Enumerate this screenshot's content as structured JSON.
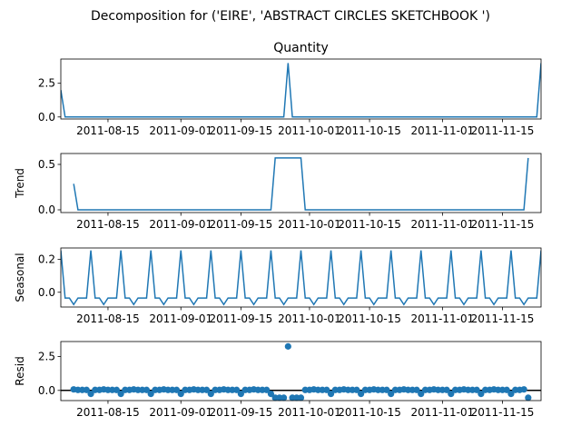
{
  "suptitle": "Decomposition for ('EIRE', 'ABSTRACT CIRCLES SKETCHBOOK ')",
  "colors": {
    "line": "#1f77b4",
    "axis": "#000000",
    "zero_line": "#000000"
  },
  "chart_data": [
    {
      "type": "line",
      "panel": "observed",
      "title": "Quantity",
      "ylabel": "",
      "ylim": [
        -0.15,
        4.3
      ],
      "yticks": [
        0.0,
        2.5
      ],
      "ytick_labels": [
        "0.0",
        "2.5"
      ],
      "x_start": "2011-08-04",
      "x_step_days": 1,
      "xlim_days": [
        0,
        112
      ],
      "x_tick_labels": [
        "2011-08-15",
        "2011-09-01",
        "2011-09-15",
        "2011-10-01",
        "2011-10-15",
        "2011-11-01",
        "2011-11-15"
      ],
      "x_tick_days": [
        11,
        28,
        42,
        58,
        72,
        89,
        103
      ],
      "spikes": [
        {
          "day": 0,
          "value": 2.0
        },
        {
          "day": 53,
          "value": 4.0
        },
        {
          "day": 112,
          "value": 4.0
        }
      ],
      "baseline": 0.0
    },
    {
      "type": "line",
      "panel": "trend",
      "title": "",
      "ylabel": "Trend",
      "ylim": [
        -0.03,
        0.62
      ],
      "yticks": [
        0.0,
        0.5
      ],
      "ytick_labels": [
        "0.0",
        "0.5"
      ],
      "x_tick_labels": [
        "2011-08-15",
        "2011-09-01",
        "2011-09-15",
        "2011-10-01",
        "2011-10-15",
        "2011-11-01",
        "2011-11-15"
      ],
      "x_tick_days": [
        11,
        28,
        42,
        58,
        72,
        89,
        103
      ],
      "points": [
        [
          3,
          0.286
        ],
        [
          4,
          0.0
        ],
        [
          49,
          0.0
        ],
        [
          50,
          0.571
        ],
        [
          56,
          0.571
        ],
        [
          57,
          0.0
        ],
        [
          108,
          0.0
        ],
        [
          109,
          0.571
        ]
      ]
    },
    {
      "type": "line",
      "panel": "seasonal",
      "title": "",
      "ylabel": "Seasonal",
      "ylim": [
        -0.09,
        0.27
      ],
      "yticks": [
        0.0,
        0.2
      ],
      "ytick_labels": [
        "0.0",
        "0.2"
      ],
      "x_tick_labels": [
        "2011-08-15",
        "2011-09-01",
        "2011-09-15",
        "2011-10-01",
        "2011-10-15",
        "2011-11-01",
        "2011-11-15"
      ],
      "x_tick_days": [
        11,
        28,
        42,
        58,
        72,
        89,
        103
      ],
      "period": 7,
      "pattern": [
        0.255,
        -0.035,
        -0.035,
        -0.075,
        -0.035,
        -0.035,
        -0.035
      ]
    },
    {
      "type": "scatter",
      "panel": "resid",
      "title": "",
      "ylabel": "Resid",
      "ylim": [
        -0.75,
        3.6
      ],
      "yticks": [
        0.0,
        2.5
      ],
      "ytick_labels": [
        "0.0",
        "2.5"
      ],
      "x_tick_labels": [
        "2011-08-15",
        "2011-09-01",
        "2011-09-15",
        "2011-10-01",
        "2011-10-15",
        "2011-11-01",
        "2011-11-15"
      ],
      "x_tick_days": [
        11,
        28,
        42,
        58,
        72,
        89,
        103
      ],
      "zero_line": true,
      "resid_range_days": [
        3,
        109
      ],
      "pattern": [
        -0.255,
        0.035,
        0.035,
        0.075,
        0.035,
        0.035,
        0.035
      ],
      "special": [
        {
          "day": 50,
          "value": -0.54
        },
        {
          "day": 51,
          "value": -0.54
        },
        {
          "day": 52,
          "value": -0.54
        },
        {
          "day": 53,
          "value": 3.24
        },
        {
          "day": 54,
          "value": -0.54
        },
        {
          "day": 55,
          "value": -0.54
        },
        {
          "day": 56,
          "value": -0.54
        },
        {
          "day": 109,
          "value": -0.54
        }
      ]
    }
  ]
}
